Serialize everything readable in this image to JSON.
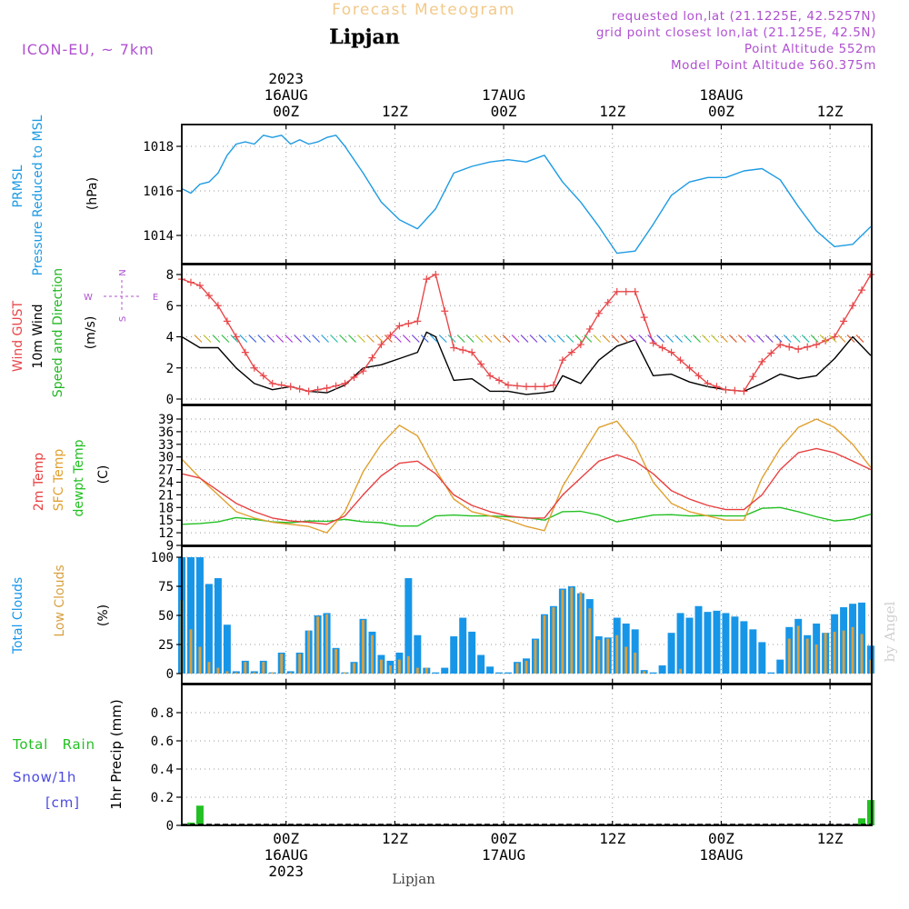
{
  "header": {
    "app_title": "Forecast Meteogram",
    "location": "Lipjan",
    "model": "ICON-EU, ~ 7km",
    "requested": "requested lon,lat (21.1225E, 42.5257N)",
    "grid_point": "grid point closest lon,lat (21.125E, 42.5N)",
    "point_altitude": "Point Altitude 552m",
    "model_altitude": "Model Point Altitude 560.375m",
    "footer_location": "Lipjan",
    "watermark": "by Angel"
  },
  "colors": {
    "pressure": "#1e9be3",
    "gust": "#e8474a",
    "wind": "#000000",
    "direction": "#22b822",
    "temp2m": "#e84040",
    "sfc": "#e0a030",
    "dew": "#22c022",
    "total_cloud": "#1796e8",
    "low_cloud": "#d8a040",
    "rain": "#22c022",
    "snow": "#4a4ae0",
    "header_purple": "#b050d0"
  },
  "time_axis": {
    "top": [
      {
        "t": 0,
        "lines": [
          "2023",
          "16AUG",
          "00Z"
        ]
      },
      {
        "t": 12,
        "lines": [
          "12Z"
        ]
      },
      {
        "t": 24,
        "lines": [
          "17AUG",
          "00Z"
        ]
      },
      {
        "t": 36,
        "lines": [
          "12Z"
        ]
      },
      {
        "t": 48,
        "lines": [
          "18AUG",
          "00Z"
        ]
      },
      {
        "t": 60,
        "lines": [
          "12Z"
        ]
      }
    ],
    "bottom": [
      {
        "t": 0,
        "lines": [
          "00Z",
          "16AUG",
          "2023"
        ]
      },
      {
        "t": 12,
        "lines": [
          "12Z"
        ]
      },
      {
        "t": 24,
        "lines": [
          "00Z",
          "17AUG"
        ]
      },
      {
        "t": 36,
        "lines": [
          "12Z"
        ]
      },
      {
        "t": 48,
        "lines": [
          "00Z",
          "18AUG"
        ]
      },
      {
        "t": 60,
        "lines": [
          "12Z"
        ]
      }
    ]
  },
  "panels": {
    "pressure": {
      "labels": [
        "PRMSL",
        "Pressure Reduced to MSL"
      ],
      "unit": "(hPa)",
      "ticks": [
        "1014",
        "1016",
        "1018"
      ]
    },
    "wind": {
      "labels": [
        "Wind GUST",
        "10m Wind",
        "Speed and Direction"
      ],
      "unit": "(m/s)",
      "compass": {
        "n": "N",
        "s": "S",
        "w": "W",
        "e": "E"
      },
      "ticks": [
        "0",
        "2",
        "4",
        "6",
        "8"
      ]
    },
    "temp": {
      "labels": [
        "2m Temp",
        "SFC Temp",
        "dewpt Temp"
      ],
      "unit": "(C)",
      "ticks": [
        "9",
        "12",
        "15",
        "18",
        "21",
        "24",
        "27",
        "30",
        "33",
        "36",
        "39"
      ]
    },
    "clouds": {
      "labels": [
        "Total Clouds",
        "Low Clouds"
      ],
      "unit": "(%)",
      "ticks": [
        "0",
        "25",
        "50",
        "75",
        "100"
      ]
    },
    "precip": {
      "labels": [
        "Total Rain",
        "Snow/1h",
        "[cm]"
      ],
      "axis_label": "1hr Precip (mm)",
      "ticks": [
        "0",
        "0.2",
        "0.4",
        "0.6",
        "0.8"
      ]
    }
  },
  "chart_data": [
    {
      "type": "line",
      "id": "pressure",
      "unit": "hPa",
      "ylim": [
        1013,
        1019
      ],
      "x": [
        -11.5,
        -10.5,
        -9.5,
        -8.5,
        -7.5,
        -6.5,
        -5.5,
        -4.5,
        -3.5,
        -2.5,
        -1.5,
        -0.5,
        0.5,
        1.5,
        2.5,
        3.5,
        4.5,
        5.5,
        6.5,
        8.5,
        10.5,
        12.5,
        14.5,
        16.5,
        18.5,
        20.5,
        22.5,
        24.5,
        26.5,
        28.5,
        30.5,
        32.5,
        34.5,
        36.5,
        38.5,
        40.5,
        42.5,
        44.5,
        46.5,
        48.5,
        50.5,
        52.5,
        54.5,
        56.5,
        58.5,
        60.5,
        62.5,
        64.5
      ],
      "series": [
        {
          "name": "PRMSL",
          "values": [
            1016.1,
            1015.9,
            1016.3,
            1016.4,
            1016.8,
            1017.6,
            1018.1,
            1018.2,
            1018.1,
            1018.5,
            1018.4,
            1018.5,
            1018.1,
            1018.3,
            1018.1,
            1018.2,
            1018.4,
            1018.5,
            1018.0,
            1016.8,
            1015.5,
            1014.7,
            1014.3,
            1015.2,
            1016.8,
            1017.1,
            1017.3,
            1017.4,
            1017.3,
            1017.6,
            1016.4,
            1015.5,
            1014.4,
            1013.2,
            1013.3,
            1014.5,
            1015.8,
            1016.4,
            1016.6,
            1016.6,
            1016.9,
            1017.0,
            1016.5,
            1015.3,
            1014.2,
            1013.5,
            1013.6,
            1014.4
          ]
        }
      ]
    },
    {
      "type": "line",
      "id": "wind",
      "unit": "m/s",
      "ylim": [
        0,
        8.6
      ],
      "x": [
        -11.5,
        -9.5,
        -7.5,
        -5.5,
        -3.5,
        -1.5,
        0.5,
        2.5,
        4.5,
        6.5,
        8.5,
        10.5,
        12.5,
        14.5,
        15.5,
        16.5,
        18.5,
        20.5,
        22.5,
        24.5,
        26.5,
        28.5,
        29.5,
        30.5,
        32.5,
        34.5,
        36.5,
        38.5,
        40.5,
        42.5,
        44.5,
        46.5,
        48.5,
        50.5,
        52.5,
        54.5,
        56.5,
        58.5,
        60.5,
        62.5,
        64.5
      ],
      "series": [
        {
          "name": "Wind GUST",
          "values": [
            7.7,
            7.3,
            6.0,
            4.0,
            2.0,
            1.0,
            0.8,
            0.5,
            0.7,
            1.0,
            1.8,
            3.5,
            4.7,
            5.0,
            7.7,
            8.0,
            3.3,
            3.0,
            1.5,
            0.9,
            0.8,
            0.8,
            0.9,
            2.5,
            3.5,
            5.5,
            6.9,
            6.9,
            3.6,
            3.0,
            2.0,
            1.0,
            0.6,
            0.5,
            2.4,
            3.5,
            3.2,
            3.5,
            4.0,
            6.0,
            8.0
          ]
        },
        {
          "name": "10m Wind",
          "values": [
            4.0,
            3.3,
            3.3,
            2.0,
            1.0,
            0.6,
            0.8,
            0.5,
            0.4,
            0.9,
            2.0,
            2.2,
            2.6,
            3.0,
            4.3,
            4.0,
            1.2,
            1.3,
            0.5,
            0.5,
            0.3,
            0.4,
            0.5,
            1.5,
            1.0,
            2.5,
            3.4,
            3.8,
            1.5,
            1.6,
            1.1,
            0.8,
            0.6,
            0.5,
            1.0,
            1.6,
            1.3,
            1.5,
            2.6,
            4.0,
            2.8
          ]
        }
      ]
    },
    {
      "type": "line",
      "id": "temperature",
      "unit": "C",
      "ylim": [
        9,
        41
      ],
      "x": [
        -11.5,
        -9.5,
        -7.5,
        -5.5,
        -3.5,
        -1.5,
        0.5,
        2.5,
        4.5,
        6.5,
        8.5,
        10.5,
        12.5,
        14.5,
        16.5,
        18.5,
        20.5,
        22.5,
        24.5,
        26.5,
        28.5,
        30.5,
        32.5,
        34.5,
        36.5,
        38.5,
        40.5,
        42.5,
        44.5,
        46.5,
        48.5,
        50.5,
        52.5,
        54.5,
        56.5,
        58.5,
        60.5,
        62.5,
        64.5
      ],
      "series": [
        {
          "name": "2m Temp",
          "values": [
            26,
            25,
            22,
            19,
            17,
            15.5,
            14.8,
            14.5,
            14,
            16,
            21,
            25.5,
            28.5,
            29,
            26,
            21,
            18.5,
            17,
            16,
            15.5,
            15.5,
            21,
            25,
            29,
            30.5,
            29,
            26,
            22,
            20,
            18.5,
            17.5,
            17.5,
            21,
            27,
            31,
            32,
            31,
            29,
            27
          ]
        },
        {
          "name": "SFC Temp",
          "values": [
            29.5,
            25,
            21,
            17,
            15.5,
            14.5,
            14,
            13.5,
            12,
            17,
            26.5,
            33,
            37.5,
            35,
            27,
            20,
            17,
            16,
            15,
            13.5,
            12.5,
            23,
            30,
            37,
            38.5,
            33,
            24,
            19,
            17,
            16,
            15,
            15,
            25,
            32,
            37,
            39,
            37,
            33,
            27.5
          ]
        },
        {
          "name": "dewpt Temp",
          "values": [
            14,
            14.2,
            14.6,
            15.6,
            15.2,
            14.6,
            14.4,
            14.8,
            14.7,
            15.2,
            14.6,
            14.4,
            13.6,
            13.6,
            16,
            16.2,
            16,
            16,
            15.8,
            15.6,
            15,
            17,
            17.1,
            16.2,
            14.6,
            15.4,
            16.2,
            16.3,
            16,
            16.1,
            16,
            16,
            17.8,
            18,
            17,
            15.8,
            14.8,
            15.2,
            16.4
          ]
        }
      ]
    },
    {
      "type": "bar",
      "id": "clouds",
      "unit": "%",
      "ylim": [
        0,
        105
      ],
      "x": [
        -11.5,
        -10.5,
        -9.5,
        -8.5,
        -7.5,
        -6.5,
        -5.5,
        -4.5,
        -3.5,
        -2.5,
        -1.5,
        -0.5,
        0.5,
        1.5,
        2.5,
        3.5,
        4.5,
        5.5,
        6.5,
        7.5,
        8.5,
        9.5,
        10.5,
        11.5,
        12.5,
        13.5,
        14.5,
        15.5,
        16.5,
        17.5,
        18.5,
        19.5,
        20.5,
        21.5,
        22.5,
        23.5,
        24.5,
        25.5,
        26.5,
        27.5,
        28.5,
        29.5,
        30.5,
        31.5,
        32.5,
        33.5,
        34.5,
        35.5,
        36.5,
        37.5,
        38.5,
        39.5,
        40.5,
        41.5,
        42.5,
        43.5,
        44.5,
        45.5,
        46.5,
        47.5,
        48.5,
        49.5,
        50.5,
        51.5,
        52.5,
        53.5,
        54.5,
        55.5,
        56.5,
        57.5,
        58.5,
        59.5,
        60.5,
        61.5,
        62.5,
        63.5,
        64.5
      ],
      "series": [
        {
          "name": "Total Clouds",
          "values": [
            100,
            100,
            100,
            77,
            82,
            42,
            2,
            11,
            2,
            11,
            1,
            18,
            2,
            18,
            37,
            50,
            52,
            22,
            1,
            10,
            47,
            36,
            16,
            11,
            18,
            82,
            33,
            5,
            1,
            5,
            32,
            48,
            36,
            16,
            6,
            1,
            1,
            10,
            13,
            30,
            51,
            58,
            73,
            75,
            69,
            64,
            32,
            31,
            48,
            43,
            38,
            3,
            1,
            7,
            35,
            52,
            48,
            58,
            53,
            54,
            52,
            49,
            45,
            38,
            27,
            1,
            12,
            40,
            47,
            33,
            43,
            35,
            51,
            57,
            60,
            61,
            24
          ]
        },
        {
          "name": "Low Clouds",
          "values": [
            63,
            38,
            23,
            10,
            5,
            2,
            1,
            10,
            1,
            10,
            1,
            17,
            1,
            17,
            37,
            49,
            51,
            21,
            1,
            9,
            46,
            33,
            12,
            7,
            12,
            15,
            5,
            5,
            0,
            0,
            0,
            0,
            0,
            0,
            0,
            0,
            0,
            9,
            11,
            29,
            50,
            57,
            72,
            74,
            70,
            56,
            29,
            30,
            33,
            23,
            18,
            2,
            0,
            0,
            0,
            4,
            0,
            0,
            0,
            0,
            0,
            0,
            0,
            0,
            0,
            0,
            0,
            30,
            41,
            30,
            25,
            35,
            36,
            37,
            40,
            34,
            12
          ]
        }
      ]
    },
    {
      "type": "bar",
      "id": "precip",
      "unit": "mm",
      "ylim": [
        0,
        0.96
      ],
      "x": [
        -10.5,
        -9.5,
        -8.5,
        -7.5,
        -6.5,
        -5.5,
        -4.5,
        -3.5,
        -2.5,
        -1.5,
        -0.5,
        0.5,
        1.5,
        2.5,
        3.5,
        4.5,
        5.5,
        6.5,
        7.5,
        8.5,
        9.5,
        10.5,
        11.5,
        12.5,
        13.5,
        14.5,
        15.5,
        16.5,
        17.5,
        18.5,
        19.5,
        20.5,
        21.5,
        22.5,
        23.5,
        24.5,
        25.5,
        26.5,
        27.5,
        28.5,
        29.5,
        30.5,
        31.5,
        32.5,
        33.5,
        34.5,
        35.5,
        36.5,
        37.5,
        38.5,
        39.5,
        40.5,
        41.5,
        42.5,
        43.5,
        44.5,
        45.5,
        46.5,
        47.5,
        48.5,
        49.5,
        50.5,
        51.5,
        52.5,
        53.5,
        54.5,
        55.5,
        56.5,
        57.5,
        58.5,
        59.5,
        60.5,
        61.5,
        62.5,
        63.5,
        64.5
      ],
      "series": [
        {
          "name": "Total Rain",
          "values": [
            0.02,
            0.14,
            0,
            0,
            0,
            0,
            0,
            0,
            0,
            0,
            0,
            0,
            0,
            0,
            0,
            0,
            0,
            0,
            0,
            0,
            0,
            0,
            0,
            0,
            0,
            0,
            0,
            0,
            0,
            0,
            0,
            0,
            0,
            0,
            0,
            0,
            0,
            0,
            0,
            0,
            0,
            0,
            0,
            0,
            0,
            0,
            0,
            0,
            0,
            0,
            0,
            0,
            0,
            0,
            0,
            0,
            0,
            0,
            0,
            0,
            0,
            0,
            0,
            0,
            0,
            0,
            0,
            0,
            0,
            0,
            0,
            0,
            0,
            0,
            0.05,
            0.18
          ]
        }
      ]
    }
  ]
}
